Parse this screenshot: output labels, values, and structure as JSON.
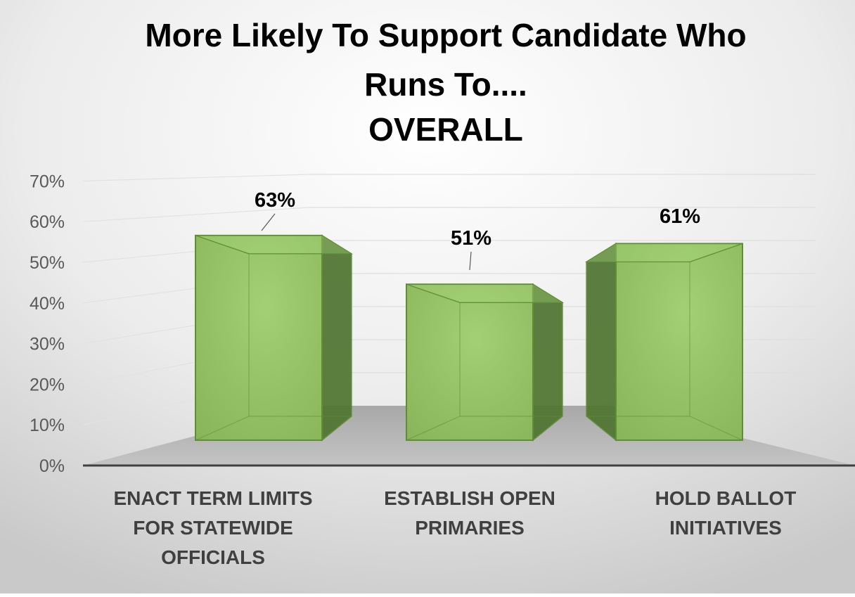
{
  "chart_data": {
    "type": "bar",
    "title_lines": [
      "More Likely To Support Candidate Who",
      "Runs To....",
      "OVERALL"
    ],
    "categories": [
      [
        "ENACT TERM LIMITS",
        "FOR STATEWIDE",
        "OFFICIALS"
      ],
      [
        "ESTABLISH OPEN",
        "PRIMARIES"
      ],
      [
        "HOLD BALLOT",
        "INITIATIVES"
      ]
    ],
    "values": [
      63,
      51,
      61
    ],
    "data_labels": [
      "63%",
      "51%",
      "61%"
    ],
    "ylim": [
      0,
      70
    ],
    "yticks": [
      "0%",
      "10%",
      "20%",
      "30%",
      "40%",
      "50%",
      "60%",
      "70%"
    ],
    "grid": true,
    "legend": "none",
    "colors": {
      "bar_fill": "#8db85e",
      "bar_light": "#a9d67a",
      "bar_edge": "#5f8f34",
      "bar_side": "#4f7430",
      "floor": "#b8b8b8",
      "axis": "#404040",
      "tick_text": "#595959",
      "category_text": "#404040",
      "title_text": "#000000"
    }
  }
}
